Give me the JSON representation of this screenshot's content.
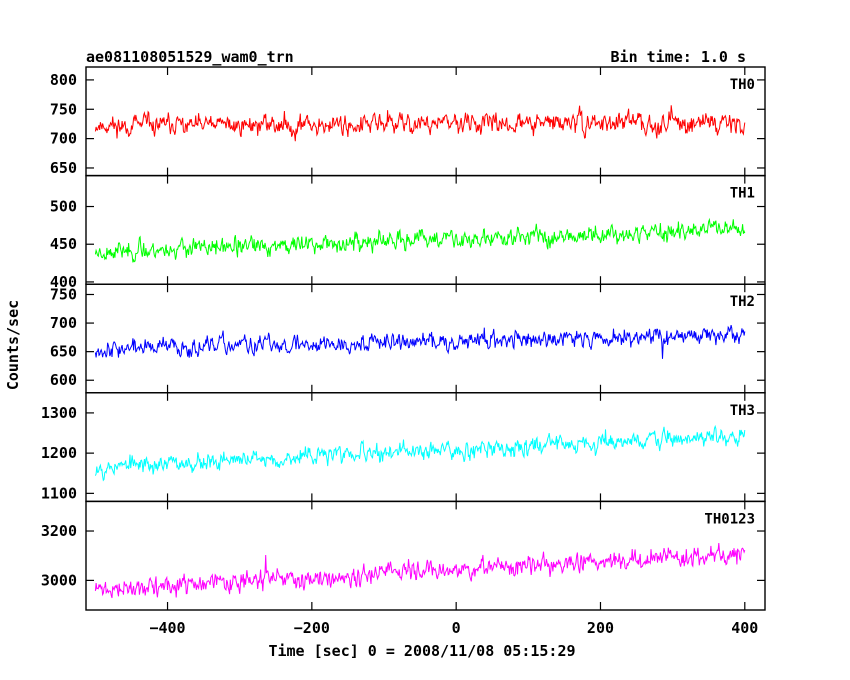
{
  "header": {
    "title": "ae081108051529_wam0_trn",
    "bin_time": "Bin time: 1.0 s"
  },
  "chart_data": {
    "type": "line",
    "xlabel": "Time [sec] 0 = 2008/11/08 05:15:29",
    "ylabel": "Counts/sec",
    "xlim": [
      -513,
      428
    ],
    "x_ticks": [
      -400,
      -200,
      0,
      200,
      400
    ],
    "x_tick_labels": [
      "−400",
      "−200",
      "0",
      "200",
      "400"
    ],
    "x_start": -500,
    "x_end": 400,
    "x_step": 1,
    "panels": [
      {
        "name": "TH0",
        "color": "#ff0000",
        "ylim": [
          637,
          822
        ],
        "y_ticks": [
          650,
          700,
          750,
          800
        ],
        "y_tick_labels": [
          "650",
          "700",
          "750",
          "800"
        ],
        "mean_start": 722,
        "mean_end": 728,
        "amplitude": 42,
        "seed": 11
      },
      {
        "name": "TH1",
        "color": "#00ff00",
        "ylim": [
          397,
          541
        ],
        "y_ticks": [
          400,
          450,
          500
        ],
        "y_tick_labels": [
          "400",
          "450",
          "500"
        ],
        "mean_start": 440,
        "mean_end": 470,
        "amplitude": 30,
        "seed": 23
      },
      {
        "name": "TH2",
        "color": "#0000ff",
        "ylim": [
          578,
          768
        ],
        "y_ticks": [
          600,
          650,
          700,
          750
        ],
        "y_tick_labels": [
          "600",
          "650",
          "700",
          "750"
        ],
        "mean_start": 655,
        "mean_end": 680,
        "amplitude": 38,
        "seed": 37
      },
      {
        "name": "TH3",
        "color": "#00ffff",
        "ylim": [
          1080,
          1350
        ],
        "y_ticks": [
          1100,
          1200,
          1300
        ],
        "y_tick_labels": [
          "1100",
          "1200",
          "1300"
        ],
        "mean_start": 1165,
        "mean_end": 1245,
        "amplitude": 55,
        "seed": 53
      },
      {
        "name": "TH0123",
        "color": "#ff00ff",
        "ylim": [
          2880,
          3320
        ],
        "y_ticks": [
          3000,
          3200
        ],
        "y_tick_labels": [
          "3000",
          "3200"
        ],
        "mean_start": 2960,
        "mean_end": 3110,
        "amplitude": 95,
        "seed": 71
      }
    ]
  }
}
